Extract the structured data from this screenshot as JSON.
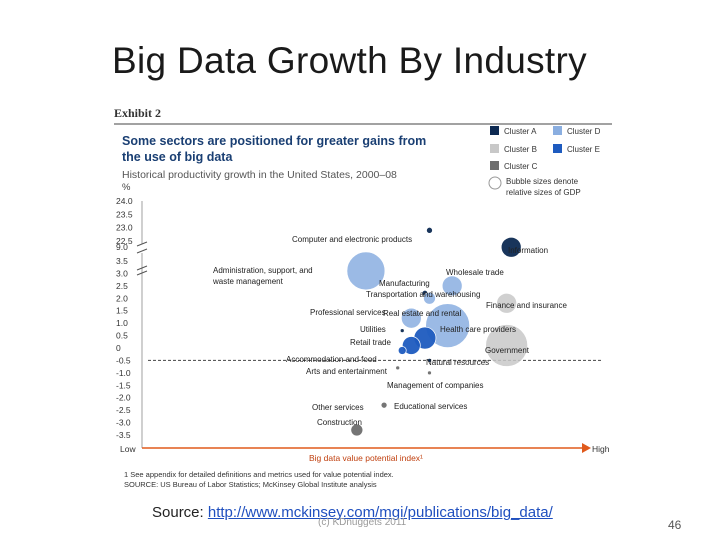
{
  "slide": {
    "title": "Big Data Growth By Industry",
    "source_prefix": "Source:",
    "source_url": "http://www.mckinsey.com/mgi/publications/big_data/",
    "watermark": "(c) KDnuggets 2011",
    "page_number": "46"
  },
  "chart_data": {
    "type": "scatter",
    "exhibit_label": "Exhibit 2",
    "title": "Some sectors are positioned for greater gains from the use of big data",
    "subtitle": "Historical productivity growth in the United States, 2000–08",
    "ylabel": "%",
    "xlabel": "Big data value potential index¹",
    "x_low_label": "Low",
    "x_high_label": "High",
    "xlim": [
      0,
      100
    ],
    "ylim": [
      -3.5,
      24.0
    ],
    "y_axis_break": [
      9.0,
      22.5
    ],
    "y_ticks": [
      "24.0",
      "23.5",
      "23.0",
      "22.5",
      "9.0",
      "3.5",
      "3.0",
      "2.5",
      "2.0",
      "1.5",
      "1.0",
      "0.5",
      "0",
      "-0.5",
      "-1.0",
      "-1.5",
      "-2.0",
      "-2.5",
      "-3.0",
      "-3.5"
    ],
    "legend": {
      "clusters": [
        {
          "name": "Cluster A",
          "color": "#0d2a52"
        },
        {
          "name": "Cluster D",
          "color": "#8aaee0"
        },
        {
          "name": "Cluster B",
          "color": "#c8c8c8"
        },
        {
          "name": "Cluster E",
          "color": "#1e5bbf"
        },
        {
          "name": "Cluster C",
          "color": "#6e6e6e"
        }
      ],
      "bubble_note": "Bubble sizes denote relative sizes of GDP"
    },
    "points": [
      {
        "label": "Computer and electronic products",
        "x": 62,
        "y": 22.9,
        "cluster": "Cluster A",
        "size": 3
      },
      {
        "label": "Information",
        "x": 80,
        "y": 8.9,
        "cluster": "Cluster A",
        "size": 10
      },
      {
        "label": "Administration, support, and waste management",
        "x": 48,
        "y": 3.1,
        "cluster": "Cluster D",
        "size": 19
      },
      {
        "label": "Wholesale trade",
        "x": 67,
        "y": 2.5,
        "cluster": "Cluster D",
        "size": 10
      },
      {
        "label": "Manufacturing",
        "x": 61,
        "y": 2.2,
        "cluster": "Cluster A",
        "size": 3
      },
      {
        "label": "Transportation and warehousing",
        "x": 62,
        "y": 2.0,
        "cluster": "Cluster D",
        "size": 6
      },
      {
        "label": "Finance and insurance",
        "x": 79,
        "y": 1.8,
        "cluster": "Cluster B",
        "size": 10
      },
      {
        "label": "Professional services",
        "x": 58,
        "y": 1.2,
        "cluster": "Cluster D",
        "size": 10
      },
      {
        "label": "Real estate and rental",
        "x": 66,
        "y": 0.9,
        "cluster": "Cluster D",
        "size": 22
      },
      {
        "label": "Utilities",
        "x": 56,
        "y": 0.7,
        "cluster": "Cluster A",
        "size": 2
      },
      {
        "label": "Health care providers",
        "x": 61,
        "y": 0.4,
        "cluster": "Cluster E",
        "size": 11
      },
      {
        "label": "Retail trade",
        "x": 58,
        "y": 0.1,
        "cluster": "Cluster E",
        "size": 9
      },
      {
        "label": "Government",
        "x": 79,
        "y": 0.1,
        "cluster": "Cluster B",
        "size": 21
      },
      {
        "label": "Accommodation and food",
        "x": 56,
        "y": -0.1,
        "cluster": "Cluster E",
        "size": 4
      },
      {
        "label": "Natural resources",
        "x": 62,
        "y": -0.5,
        "cluster": "Cluster A",
        "size": 2
      },
      {
        "label": "Arts and entertainment",
        "x": 55,
        "y": -0.8,
        "cluster": "Cluster C",
        "size": 2
      },
      {
        "label": "Management of companies",
        "x": 62,
        "y": -1.0,
        "cluster": "Cluster C",
        "size": 2
      },
      {
        "label": "Other services",
        "x": 52,
        "y": -2.3,
        "cluster": "Cluster C",
        "size": 3
      },
      {
        "label": "Educational services",
        "x": 58,
        "y": -2.3,
        "cluster": "Cluster C",
        "size": 1
      },
      {
        "label": "Construction",
        "x": 46,
        "y": -3.3,
        "cluster": "Cluster C",
        "size": 6
      }
    ],
    "footnote": "1  See appendix for detailed definitions and metrics used for value potential index.",
    "source": "SOURCE:  US Bureau of Labor Statistics; McKinsey Global Institute analysis"
  }
}
